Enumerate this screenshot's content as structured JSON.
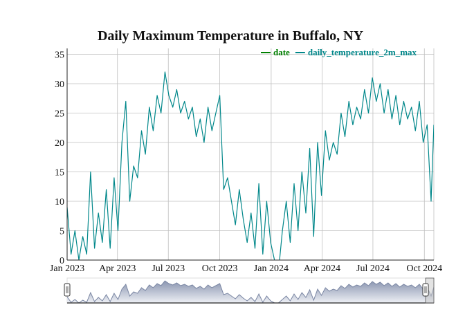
{
  "chart_data": {
    "type": "line",
    "title": "Daily Maximum Temperature in Buffalo, NY",
    "xlabel": "",
    "ylabel": "",
    "x_range": [
      "2023-01-01",
      "2024-10-18"
    ],
    "ylim": [
      0,
      36
    ],
    "yticks": [
      0,
      5,
      10,
      15,
      20,
      25,
      30,
      35
    ],
    "xticks": [
      "Jan 2023",
      "Apr 2023",
      "Jul 2023",
      "Oct 2023",
      "Jan 2024",
      "Apr 2024",
      "Jul 2024",
      "Oct 2024"
    ],
    "xtick_dates": [
      "2023-01-01",
      "2023-04-01",
      "2023-07-01",
      "2023-10-01",
      "2024-01-01",
      "2024-04-01",
      "2024-07-01",
      "2024-10-01"
    ],
    "grid": true,
    "legend_position": "top-right",
    "has_range_slider": true,
    "series": [
      {
        "name": "date",
        "color": "#008000",
        "values": []
      },
      {
        "name": "daily_temperature_2m_max",
        "color": "#00878a",
        "x": [
          "2023-01-01",
          "2023-01-08",
          "2023-01-15",
          "2023-01-22",
          "2023-01-29",
          "2023-02-05",
          "2023-02-12",
          "2023-02-19",
          "2023-02-26",
          "2023-03-05",
          "2023-03-12",
          "2023-03-19",
          "2023-03-26",
          "2023-04-02",
          "2023-04-09",
          "2023-04-16",
          "2023-04-23",
          "2023-04-30",
          "2023-05-07",
          "2023-05-14",
          "2023-05-21",
          "2023-05-28",
          "2023-06-04",
          "2023-06-11",
          "2023-06-18",
          "2023-06-25",
          "2023-07-02",
          "2023-07-09",
          "2023-07-16",
          "2023-07-23",
          "2023-07-30",
          "2023-08-06",
          "2023-08-13",
          "2023-08-20",
          "2023-08-27",
          "2023-09-03",
          "2023-09-10",
          "2023-09-17",
          "2023-09-24",
          "2023-10-01",
          "2023-10-08",
          "2023-10-15",
          "2023-10-22",
          "2023-10-29",
          "2023-11-05",
          "2023-11-12",
          "2023-11-19",
          "2023-11-26",
          "2023-12-03",
          "2023-12-10",
          "2023-12-17",
          "2023-12-24",
          "2023-12-31",
          "2024-01-07",
          "2024-01-14",
          "2024-01-21",
          "2024-01-28",
          "2024-02-04",
          "2024-02-11",
          "2024-02-18",
          "2024-02-25",
          "2024-03-03",
          "2024-03-10",
          "2024-03-17",
          "2024-03-24",
          "2024-03-31",
          "2024-04-07",
          "2024-04-14",
          "2024-04-21",
          "2024-04-28",
          "2024-05-05",
          "2024-05-12",
          "2024-05-19",
          "2024-05-26",
          "2024-06-02",
          "2024-06-09",
          "2024-06-16",
          "2024-06-23",
          "2024-06-30",
          "2024-07-07",
          "2024-07-14",
          "2024-07-21",
          "2024-07-28",
          "2024-08-04",
          "2024-08-11",
          "2024-08-18",
          "2024-08-25",
          "2024-09-01",
          "2024-09-08",
          "2024-09-15",
          "2024-09-22",
          "2024-09-29",
          "2024-10-06",
          "2024-10-13",
          "2024-10-18"
        ],
        "values": [
          9,
          1,
          5,
          0,
          4,
          1,
          15,
          2,
          8,
          3,
          12,
          2,
          14,
          5,
          20,
          27,
          10,
          16,
          14,
          22,
          18,
          26,
          22,
          28,
          25,
          32,
          28,
          26,
          29,
          25,
          27,
          24,
          26,
          21,
          24,
          20,
          26,
          22,
          25,
          28,
          12,
          14,
          10,
          6,
          12,
          7,
          3,
          8,
          2,
          13,
          1,
          10,
          3,
          0,
          -2,
          5,
          10,
          3,
          13,
          5,
          15,
          8,
          19,
          4,
          20,
          11,
          22,
          17,
          20,
          18,
          25,
          21,
          27,
          23,
          26,
          24,
          29,
          25,
          31,
          27,
          30,
          25,
          29,
          24,
          28,
          23,
          27,
          24,
          26,
          22,
          27,
          20,
          23,
          10,
          23
        ]
      }
    ]
  }
}
